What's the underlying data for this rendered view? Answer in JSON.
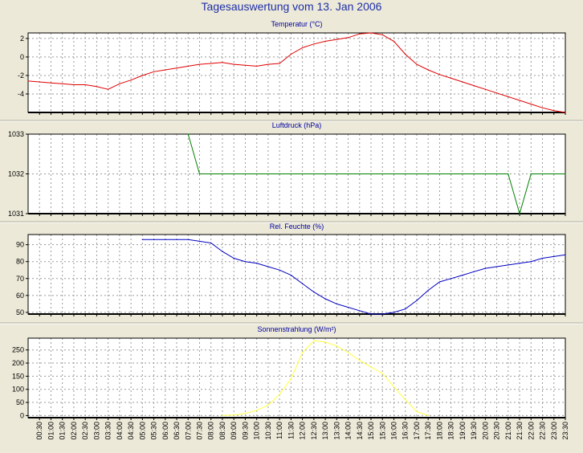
{
  "title": "Tagesauswertung vom 13. Jan 2006",
  "colors": {
    "background": "#ece9d8",
    "plot_bg": "#ffffff",
    "grid": "#9a9a9a"
  },
  "x_ticks": [
    "00:30",
    "01:00",
    "01:30",
    "02:00",
    "02:30",
    "03:00",
    "03:30",
    "04:00",
    "04:30",
    "05:00",
    "05:30",
    "06:00",
    "06:30",
    "07:00",
    "07:30",
    "08:00",
    "08:30",
    "09:00",
    "09:30",
    "10:00",
    "10:30",
    "11:00",
    "11:30",
    "12:00",
    "12:30",
    "13:00",
    "13:30",
    "14:00",
    "14:30",
    "15:00",
    "15:30",
    "16:00",
    "16:30",
    "17:00",
    "17:30",
    "18:00",
    "18:30",
    "19:00",
    "19:30",
    "20:00",
    "20:30",
    "21:00",
    "21:30",
    "22:00",
    "22:30",
    "23:00",
    "23:30"
  ],
  "chart_data": [
    {
      "type": "line",
      "title": "Temperatur (°C)",
      "color": "#e00000",
      "ylim": [
        -6,
        2.6
      ],
      "y_ticks": [
        2,
        0,
        -2,
        -4
      ],
      "y_tick_labels": [
        "2",
        "0",
        "-2",
        "-4"
      ],
      "grid": true,
      "x": [
        "00:00",
        "00:30",
        "01:00",
        "01:30",
        "02:00",
        "02:30",
        "03:00",
        "03:30",
        "04:00",
        "04:30",
        "05:00",
        "05:30",
        "06:00",
        "06:30",
        "07:00",
        "07:30",
        "08:00",
        "08:30",
        "09:00",
        "09:30",
        "10:00",
        "10:30",
        "11:00",
        "11:30",
        "12:00",
        "12:30",
        "13:00",
        "13:30",
        "14:00",
        "14:30",
        "15:00",
        "15:30",
        "16:00",
        "16:30",
        "17:00",
        "17:30",
        "18:00",
        "18:30",
        "19:00",
        "19:30",
        "20:00",
        "20:30",
        "21:00",
        "21:30",
        "22:00",
        "22:30",
        "23:00",
        "23:30"
      ],
      "values": [
        -2.6,
        -2.7,
        -2.8,
        -2.9,
        -3.0,
        -3.0,
        -3.2,
        -3.5,
        -2.9,
        -2.5,
        -2.0,
        -1.6,
        -1.4,
        -1.2,
        -1.0,
        -0.8,
        -0.7,
        -0.6,
        -0.8,
        -0.9,
        -1.0,
        -0.8,
        -0.7,
        0.3,
        1.0,
        1.4,
        1.7,
        1.9,
        2.1,
        2.5,
        2.6,
        2.4,
        1.7,
        0.3,
        -0.8,
        -1.4,
        -1.9,
        -2.3,
        -2.7,
        -3.1,
        -3.5,
        -3.9,
        -4.3,
        -4.7,
        -5.1,
        -5.5,
        -5.8,
        -6.0
      ]
    },
    {
      "type": "line",
      "title": "Luftdruck (hPa)",
      "color": "#008000",
      "ylim": [
        1031,
        1033
      ],
      "y_ticks": [
        1033,
        1032,
        1031
      ],
      "y_tick_labels": [
        "1033",
        "1032",
        "1031"
      ],
      "grid": true,
      "x": [
        "07:00",
        "07:30",
        "08:00",
        "08:30",
        "09:00",
        "09:30",
        "10:00",
        "10:30",
        "11:00",
        "11:30",
        "12:00",
        "12:30",
        "13:00",
        "13:30",
        "14:00",
        "14:30",
        "15:00",
        "15:30",
        "16:00",
        "16:30",
        "17:00",
        "17:30",
        "18:00",
        "18:30",
        "19:00",
        "19:30",
        "20:00",
        "20:30",
        "21:00",
        "21:30",
        "22:00",
        "22:30",
        "23:00",
        "23:30"
      ],
      "values": [
        1033,
        1032,
        1032,
        1032,
        1032,
        1032,
        1032,
        1032,
        1032,
        1032,
        1032,
        1032,
        1032,
        1032,
        1032,
        1032,
        1032,
        1032,
        1032,
        1032,
        1032,
        1032,
        1032,
        1032,
        1032,
        1032,
        1032,
        1032,
        1032,
        1031,
        1032,
        1032,
        1032,
        1032
      ]
    },
    {
      "type": "line",
      "title": "Rel. Feuchte (%)",
      "color": "#0000c0",
      "ylim": [
        49,
        96
      ],
      "y_ticks": [
        90,
        80,
        70,
        60,
        50
      ],
      "y_tick_labels": [
        "90",
        "80",
        "70",
        "60",
        "50"
      ],
      "grid": true,
      "x": [
        "05:00",
        "05:30",
        "06:00",
        "06:30",
        "07:00",
        "07:30",
        "08:00",
        "08:30",
        "09:00",
        "09:30",
        "10:00",
        "10:30",
        "11:00",
        "11:30",
        "12:00",
        "12:30",
        "13:00",
        "13:30",
        "14:00",
        "14:30",
        "15:00",
        "15:30",
        "16:00",
        "16:30",
        "17:00",
        "17:30",
        "18:00",
        "18:30",
        "19:00",
        "19:30",
        "20:00",
        "20:30",
        "21:00",
        "21:30",
        "22:00",
        "22:30",
        "23:00",
        "23:30"
      ],
      "values": [
        93,
        93,
        93,
        93,
        93,
        92,
        91,
        86,
        82,
        80,
        79,
        77,
        75,
        72,
        67,
        62,
        58,
        55,
        53,
        51,
        49,
        49,
        50,
        52,
        57,
        63,
        68,
        70,
        72,
        74,
        76,
        77,
        78,
        79,
        80,
        82,
        83,
        84
      ]
    },
    {
      "type": "line",
      "title": "Sonnenstrahlung (W/m²)",
      "color": "#ffff40",
      "ylim": [
        -8,
        295
      ],
      "y_ticks": [
        250,
        200,
        150,
        100,
        50,
        0
      ],
      "y_tick_labels": [
        "250",
        "200",
        "150",
        "100",
        "50",
        "0"
      ],
      "grid": true,
      "x": [
        "08:30",
        "09:00",
        "09:30",
        "10:00",
        "10:30",
        "11:00",
        "11:30",
        "12:00",
        "12:30",
        "13:00",
        "13:30",
        "14:00",
        "14:30",
        "15:00",
        "15:30",
        "16:00",
        "16:30",
        "17:00",
        "17:30"
      ],
      "values": [
        0,
        2,
        8,
        20,
        40,
        80,
        140,
        240,
        285,
        280,
        265,
        240,
        210,
        185,
        160,
        110,
        60,
        15,
        0
      ]
    }
  ]
}
